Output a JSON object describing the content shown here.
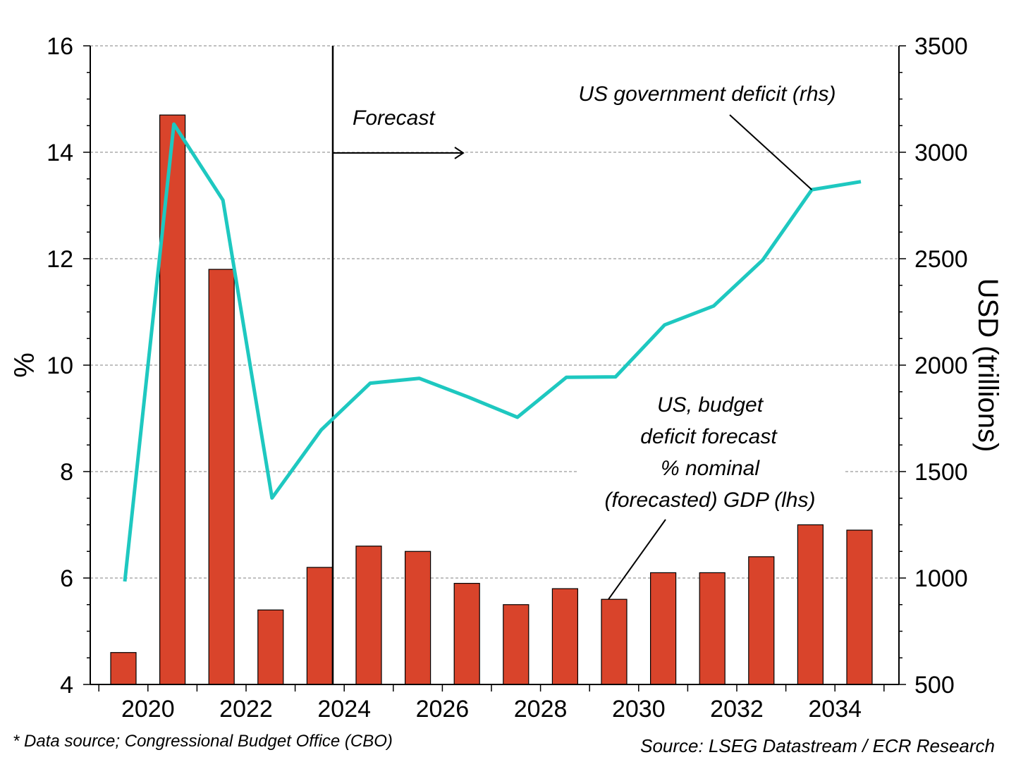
{
  "chart_data": {
    "type": "bar",
    "title": "",
    "x_tick_labels": [
      "2020",
      "2022",
      "2024",
      "2026",
      "2028",
      "2030",
      "2032",
      "2034"
    ],
    "y_left": {
      "label": "%",
      "ylim": [
        4,
        16
      ],
      "ticks": [
        "4",
        "6",
        "8",
        "10",
        "12",
        "14",
        "16"
      ]
    },
    "y_right": {
      "label": "USD (trillions)",
      "ylim": [
        500,
        3500
      ],
      "ticks": [
        "500",
        "1000",
        "1500",
        "2000",
        "2500",
        "3000",
        "3500"
      ]
    },
    "categories": [
      2019,
      2020,
      2021,
      2022,
      2023,
      2024,
      2025,
      2026,
      2027,
      2028,
      2029,
      2030,
      2031,
      2032,
      2033,
      2034
    ],
    "series": [
      {
        "name": "US, budget deficit forecast % nominal (forecasted) GDP (lhs)",
        "type": "bar",
        "axis": "left",
        "color": "#d9442b",
        "values": [
          4.6,
          14.7,
          11.8,
          5.4,
          6.2,
          6.6,
          6.5,
          5.9,
          5.5,
          5.8,
          5.6,
          6.1,
          6.1,
          6.4,
          7.0,
          6.9
        ]
      },
      {
        "name": "US government deficit (rhs)",
        "type": "line",
        "axis": "right",
        "color": "#1ec8c0",
        "values": [
          984,
          3132,
          2775,
          1376,
          1695,
          1915,
          1938,
          1850,
          1755,
          1943,
          1945,
          2189,
          2278,
          2494,
          2824,
          2862
        ]
      }
    ],
    "forecast_start": 2023.5,
    "grid": true,
    "annotations": {
      "forecast": "Forecast",
      "line_label": "US government deficit (rhs)",
      "bar_label_lines": [
        "US, budget",
        "deficit forecast",
        "% nominal",
        "(forecasted) GDP (lhs)"
      ]
    }
  },
  "footer": {
    "left": "* Data source; Congressional Budget Office  (CBO)",
    "right": "Source: LSEG Datastream / ECR Research"
  }
}
